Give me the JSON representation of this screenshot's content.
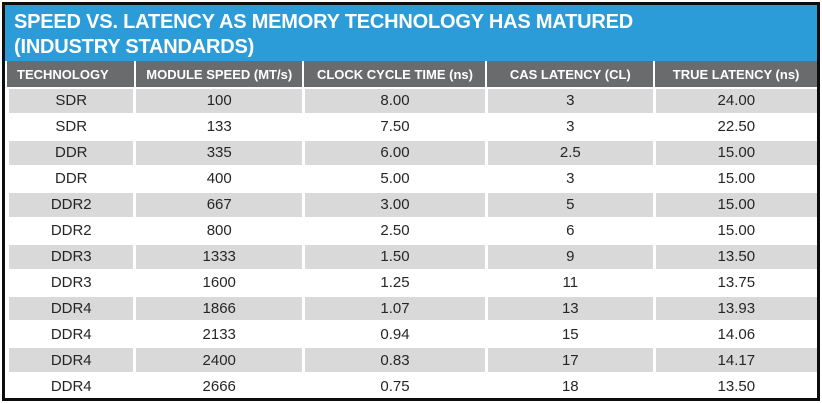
{
  "title": {
    "line1": "SPEED VS. LATENCY AS MEMORY TECHNOLOGY HAS MATURED",
    "line2": "(INDUSTRY STANDARDS)"
  },
  "colors": {
    "accent_blue": "#2b9cd8",
    "header_gray": "#6a6b6d",
    "row_alt_gray": "#d9d9d9",
    "border_black": "#0d0d0d",
    "title_text": "#ffffff",
    "body_text": "#262626"
  },
  "chart_data": {
    "type": "table",
    "title": "SPEED VS. LATENCY AS MEMORY TECHNOLOGY HAS MATURED (INDUSTRY STANDARDS)",
    "columns": [
      "TECHNOLOGY",
      "MODULE SPEED (MT/s)",
      "CLOCK CYCLE TIME (ns)",
      "CAS LATENCY (CL)",
      "TRUE LATENCY (ns)"
    ],
    "column_widths_percent": [
      15.8,
      20.8,
      22.6,
      20.7,
      20.1
    ],
    "rows": [
      [
        "SDR",
        "100",
        "8.00",
        "3",
        "24.00"
      ],
      [
        "SDR",
        "133",
        "7.50",
        "3",
        "22.50"
      ],
      [
        "DDR",
        "335",
        "6.00",
        "2.5",
        "15.00"
      ],
      [
        "DDR",
        "400",
        "5.00",
        "3",
        "15.00"
      ],
      [
        "DDR2",
        "667",
        "3.00",
        "5",
        "15.00"
      ],
      [
        "DDR2",
        "800",
        "2.50",
        "6",
        "15.00"
      ],
      [
        "DDR3",
        "1333",
        "1.50",
        "9",
        "13.50"
      ],
      [
        "DDR3",
        "1600",
        "1.25",
        "11",
        "13.75"
      ],
      [
        "DDR4",
        "1866",
        "1.07",
        "13",
        "13.93"
      ],
      [
        "DDR4",
        "2133",
        "0.94",
        "15",
        "14.06"
      ],
      [
        "DDR4",
        "2400",
        "0.83",
        "17",
        "14.17"
      ],
      [
        "DDR4",
        "2666",
        "0.75",
        "18",
        "13.50"
      ]
    ]
  }
}
